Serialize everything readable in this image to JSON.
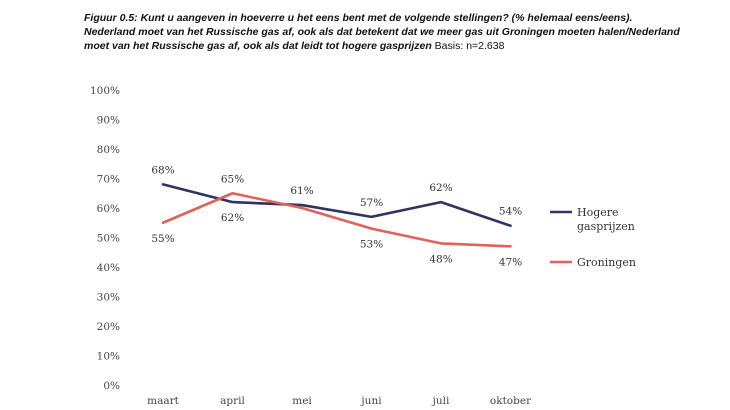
{
  "caption": {
    "bold": "Figuur 0.5: Kunt u aangeven in hoeverre u het eens bent met de volgende stellingen? (% helemaal eens/eens). Nederland moet van het Russische gas af, ook als dat betekent dat we meer gas uit Groningen moeten halen/Nederland moet van het Russische gas af, ook als dat leidt tot hogere gasprijzen",
    "plain": " Basis: n=2.638"
  },
  "chart_data": {
    "type": "line",
    "categories": [
      "maart",
      "april",
      "mei",
      "juni",
      "juli",
      "oktober"
    ],
    "ylim": [
      0,
      100
    ],
    "yticks": [
      "0%",
      "10%",
      "20%",
      "30%",
      "40%",
      "50%",
      "60%",
      "70%",
      "80%",
      "90%",
      "100%"
    ],
    "grid": false,
    "legend_position": "right",
    "series": [
      {
        "name": "Hogere gasprijzen",
        "legend_lines": [
          "Hogere",
          "gasprijzen"
        ],
        "color": "#2e3460",
        "values": [
          68,
          62,
          61,
          57,
          62,
          54
        ],
        "labels": [
          "68%",
          "62%",
          "61%",
          "57%",
          "62%",
          "54%"
        ]
      },
      {
        "name": "Groningen",
        "legend_lines": [
          "Groningen"
        ],
        "color": "#e0625a",
        "values": [
          55,
          65,
          60,
          53,
          48,
          47
        ],
        "labels": [
          "55%",
          "65%",
          "",
          "53%",
          "48%",
          "47%"
        ]
      }
    ]
  }
}
